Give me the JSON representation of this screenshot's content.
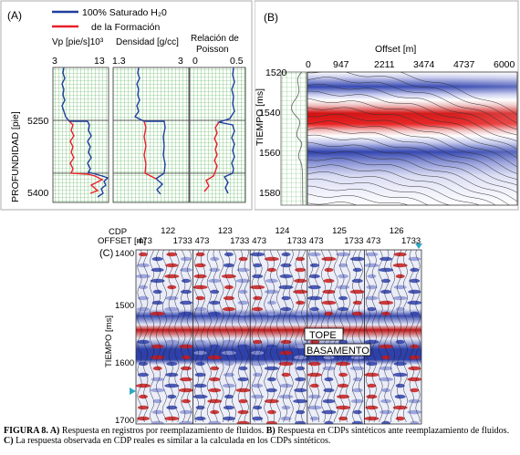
{
  "panel_a": {
    "label": "(A)",
    "legend": [
      {
        "label": "100% Saturado H₂0",
        "color": "#1f3f9e"
      },
      {
        "label": "de la Formación",
        "color": "#e8202a"
      }
    ],
    "ylabel": "PROFUNDIDAD [pie]",
    "yticks": [
      "5250",
      "5400"
    ],
    "tracks": [
      {
        "title": "Vp [pie/s]10³",
        "min": "3",
        "max": "13"
      },
      {
        "title": "Densidad [g/cc]",
        "min": "1.3",
        "max": "3"
      },
      {
        "title_line1": "Relación de",
        "title_line2": "Poisson",
        "min": "0",
        "max": "0.5"
      }
    ]
  },
  "panel_b": {
    "label": "(B)",
    "xlabel": "Offset [m]",
    "xticks": [
      "0",
      "947",
      "2211",
      "3474",
      "4737",
      "6000"
    ],
    "ylabel": "TIEMPO [ms]",
    "yticks": [
      "1520",
      "1540",
      "1560",
      "1580"
    ]
  },
  "panel_c": {
    "label": "(C)",
    "cdp_label": "CDP",
    "offset_label": "OFFSET [m]",
    "cdps": [
      "122",
      "123",
      "124",
      "125",
      "126"
    ],
    "offset_min": "473",
    "offset_max": "1733",
    "ylabel": "TIEMPO [ms]",
    "yticks": [
      "1400",
      "1500",
      "1600",
      "1700"
    ],
    "annotations": [
      "TOPE",
      "BASAMENTO"
    ]
  },
  "caption": {
    "lead": "FIGURA 8. A)",
    "part_a": " Respuesta en registros por reemplazamiento de fluidos. ",
    "b_label": "B)",
    "part_b": " Respuesta en CDPs sintéticos ante reemplazamiento de fluidos.  ",
    "c_label": "C)",
    "part_c": " La respuesta observada en CDP reales es similar a la calculada en los CDPs sintéticos."
  }
}
